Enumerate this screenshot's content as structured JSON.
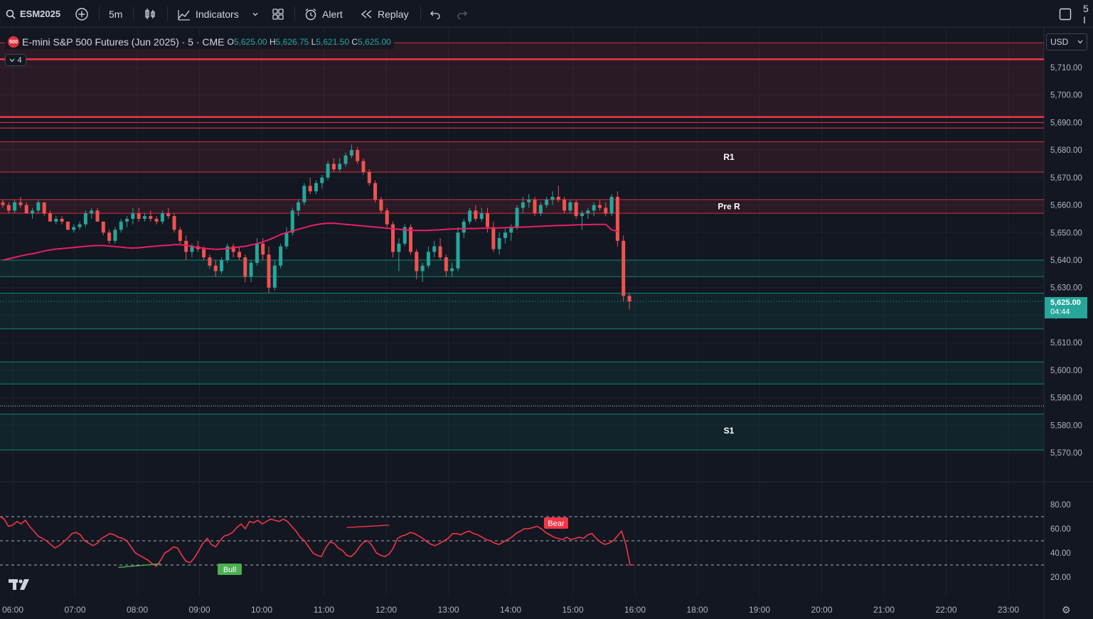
{
  "toolbar": {
    "symbol": "ESM2025",
    "interval": "5m",
    "indicators_label": "Indicators",
    "alert_label": "Alert",
    "replay_label": "Replay",
    "right_text": "5 I"
  },
  "legend": {
    "badge": "500",
    "title": "E-mini S&P 500 Futures (Jun 2025) · 5 · CME",
    "open_label": "O",
    "open": "5,625.00",
    "high_label": "H",
    "high": "5,626.75",
    "low_label": "L",
    "low": "5,621.50",
    "close_label": "C",
    "close": "5,625.00",
    "collapsed_count": "4"
  },
  "currency": "USD",
  "last_price": {
    "price": "5,625.00",
    "countdown": "04:44"
  },
  "chart_data": [
    {
      "type": "candlestick",
      "ylim": [
        5566,
        5725
      ],
      "yticks": [
        "5,710.00",
        "5,700.00",
        "5,690.00",
        "5,680.00",
        "5,670.00",
        "5,660.00",
        "5,650.00",
        "5,640.00",
        "5,630.00",
        "5,620.00",
        "5,610.00",
        "5,600.00",
        "5,590.00",
        "5,580.00",
        "5,570.00"
      ],
      "xticks": [
        "06:00",
        "07:00",
        "08:00",
        "09:00",
        "10:00",
        "11:00",
        "12:00",
        "13:00",
        "14:00",
        "15:00",
        "16:00",
        "18:00",
        "19:00",
        "20:00",
        "21:00",
        "22:00",
        "23:00"
      ],
      "zones": [
        {
          "from": 5692,
          "to": 5719,
          "color": "#f23645",
          "label": ""
        },
        {
          "from": 5672,
          "to": 5683,
          "color": "#f23645",
          "label": "R1"
        },
        {
          "from": 5657,
          "to": 5662,
          "color": "#f23645",
          "label": "Pre R"
        },
        {
          "from": 5640,
          "to": 5634,
          "color": "#089981",
          "label": ""
        },
        {
          "from": 5628,
          "to": 5615,
          "color": "#089981",
          "label": ""
        },
        {
          "from": 5603,
          "to": 5595,
          "color": "#089981",
          "label": ""
        },
        {
          "from": 5584,
          "to": 5571,
          "color": "#089981",
          "label": ""
        }
      ],
      "zone_labels": [
        "R1",
        "Pre R",
        "S1"
      ],
      "s1_level": 5578,
      "hlines_red": [
        5713,
        5692,
        5690,
        5688
      ],
      "dotted_level": 5587,
      "ma_color": "#e91e63",
      "candle_up": "#26a69a",
      "candle_down": "#ef5350",
      "candles": [
        [
          5661,
          5662,
          5659,
          5660
        ],
        [
          5660,
          5661,
          5657,
          5658
        ],
        [
          5658,
          5662,
          5657,
          5661
        ],
        [
          5661,
          5663,
          5659,
          5660
        ],
        [
          5660,
          5661,
          5657,
          5657
        ],
        [
          5657,
          5659,
          5655,
          5658
        ],
        [
          5658,
          5662,
          5657,
          5661
        ],
        [
          5661,
          5661,
          5656,
          5657
        ],
        [
          5657,
          5658,
          5654,
          5654
        ],
        [
          5654,
          5656,
          5653,
          5655
        ],
        [
          5655,
          5656,
          5653,
          5654
        ],
        [
          5654,
          5654,
          5651,
          5651
        ],
        [
          5651,
          5653,
          5650,
          5652
        ],
        [
          5652,
          5654,
          5651,
          5653
        ],
        [
          5653,
          5658,
          5652,
          5657
        ],
        [
          5657,
          5659,
          5655,
          5658
        ],
        [
          5658,
          5659,
          5654,
          5654
        ],
        [
          5654,
          5654,
          5649,
          5650
        ],
        [
          5650,
          5651,
          5646,
          5647
        ],
        [
          5647,
          5652,
          5646,
          5651
        ],
        [
          5651,
          5655,
          5650,
          5654
        ],
        [
          5654,
          5656,
          5652,
          5655
        ],
        [
          5655,
          5659,
          5653,
          5657
        ],
        [
          5657,
          5659,
          5654,
          5655
        ],
        [
          5655,
          5657,
          5654,
          5656
        ],
        [
          5656,
          5658,
          5654,
          5655
        ],
        [
          5655,
          5656,
          5653,
          5654
        ],
        [
          5654,
          5658,
          5653,
          5657
        ],
        [
          5657,
          5659,
          5655,
          5656
        ],
        [
          5656,
          5657,
          5650,
          5651
        ],
        [
          5651,
          5652,
          5646,
          5647
        ],
        [
          5647,
          5649,
          5640,
          5643
        ],
        [
          5643,
          5646,
          5641,
          5645
        ],
        [
          5645,
          5647,
          5643,
          5644
        ],
        [
          5644,
          5645,
          5640,
          5641
        ],
        [
          5641,
          5642,
          5637,
          5638
        ],
        [
          5638,
          5640,
          5634,
          5636
        ],
        [
          5636,
          5641,
          5635,
          5640
        ],
        [
          5640,
          5646,
          5639,
          5645
        ],
        [
          5645,
          5646,
          5641,
          5643
        ],
        [
          5643,
          5645,
          5640,
          5641
        ],
        [
          5641,
          5642,
          5632,
          5634
        ],
        [
          5634,
          5640,
          5632,
          5639
        ],
        [
          5639,
          5648,
          5638,
          5646
        ],
        [
          5646,
          5648,
          5640,
          5642
        ],
        [
          5642,
          5645,
          5628,
          5630
        ],
        [
          5630,
          5640,
          5629,
          5638
        ],
        [
          5638,
          5646,
          5637,
          5645
        ],
        [
          5645,
          5652,
          5644,
          5650
        ],
        [
          5650,
          5659,
          5649,
          5658
        ],
        [
          5658,
          5662,
          5656,
          5661
        ],
        [
          5661,
          5668,
          5660,
          5667
        ],
        [
          5667,
          5670,
          5664,
          5665
        ],
        [
          5665,
          5669,
          5664,
          5668
        ],
        [
          5668,
          5671,
          5666,
          5670
        ],
        [
          5670,
          5676,
          5669,
          5675
        ],
        [
          5675,
          5677,
          5672,
          5673
        ],
        [
          5673,
          5677,
          5672,
          5675
        ],
        [
          5675,
          5679,
          5674,
          5678
        ],
        [
          5678,
          5682,
          5677,
          5680
        ],
        [
          5680,
          5681,
          5675,
          5676
        ],
        [
          5676,
          5677,
          5671,
          5672
        ],
        [
          5672,
          5673,
          5667,
          5668
        ],
        [
          5668,
          5669,
          5661,
          5662
        ],
        [
          5662,
          5663,
          5657,
          5658
        ],
        [
          5658,
          5659,
          5652,
          5653
        ],
        [
          5653,
          5654,
          5641,
          5643
        ],
        [
          5643,
          5648,
          5636,
          5646
        ],
        [
          5646,
          5653,
          5645,
          5652
        ],
        [
          5652,
          5653,
          5642,
          5643
        ],
        [
          5643,
          5644,
          5633,
          5636
        ],
        [
          5636,
          5639,
          5632,
          5638
        ],
        [
          5638,
          5645,
          5637,
          5643
        ],
        [
          5643,
          5647,
          5641,
          5645
        ],
        [
          5645,
          5648,
          5640,
          5641
        ],
        [
          5641,
          5642,
          5634,
          5636
        ],
        [
          5636,
          5639,
          5634,
          5637
        ],
        [
          5637,
          5652,
          5636,
          5650
        ],
        [
          5650,
          5655,
          5648,
          5654
        ],
        [
          5654,
          5659,
          5653,
          5658
        ],
        [
          5658,
          5660,
          5654,
          5655
        ],
        [
          5655,
          5659,
          5654,
          5657
        ],
        [
          5657,
          5659,
          5650,
          5652
        ],
        [
          5652,
          5654,
          5643,
          5644
        ],
        [
          5644,
          5650,
          5642,
          5648
        ],
        [
          5648,
          5652,
          5646,
          5650
        ],
        [
          5650,
          5653,
          5647,
          5652
        ],
        [
          5652,
          5660,
          5651,
          5659
        ],
        [
          5659,
          5663,
          5657,
          5661
        ],
        [
          5661,
          5664,
          5659,
          5662
        ],
        [
          5662,
          5663,
          5656,
          5657
        ],
        [
          5657,
          5661,
          5656,
          5660
        ],
        [
          5660,
          5663,
          5659,
          5662
        ],
        [
          5662,
          5665,
          5660,
          5663
        ],
        [
          5663,
          5667,
          5661,
          5662
        ],
        [
          5662,
          5663,
          5657,
          5658
        ],
        [
          5658,
          5662,
          5657,
          5661
        ],
        [
          5661,
          5662,
          5655,
          5656
        ],
        [
          5656,
          5658,
          5651,
          5657
        ],
        [
          5657,
          5659,
          5655,
          5658
        ],
        [
          5658,
          5661,
          5656,
          5660
        ],
        [
          5660,
          5662,
          5658,
          5659
        ],
        [
          5659,
          5661,
          5656,
          5657
        ],
        [
          5657,
          5664,
          5656,
          5663
        ],
        [
          5663,
          5665,
          5645,
          5647
        ],
        [
          5647,
          5649,
          5625,
          5627
        ],
        [
          5627,
          5628,
          5622,
          5625
        ]
      ],
      "ma": [
        5640,
        5640.5,
        5641,
        5641.5,
        5642,
        5642.3,
        5642.8,
        5643.3,
        5643.7,
        5644,
        5644.2,
        5644.4,
        5644.6,
        5644.8,
        5645,
        5645.2,
        5645.3,
        5645.3,
        5645.1,
        5644.9,
        5644.7,
        5644.5,
        5644.4,
        5644.5,
        5644.7,
        5644.9,
        5645.1,
        5645.3,
        5645.4,
        5645.6,
        5645.6,
        5645.4,
        5645,
        5644.6,
        5644.3,
        5644.1,
        5643.9,
        5644,
        5644.2,
        5644.5,
        5644.8,
        5645,
        5645.5,
        5646,
        5646.6,
        5647.4,
        5648.3,
        5649.3,
        5650,
        5650.6,
        5651.2,
        5651.8,
        5652.4,
        5652.9,
        5653.2,
        5653.4,
        5653.4,
        5653.2,
        5653,
        5652.8,
        5652.6,
        5652.4,
        5652.2,
        5652,
        5651.8,
        5651.6,
        5651.4,
        5651.2,
        5651,
        5650.8,
        5650.8,
        5650.8,
        5650.8,
        5650.9,
        5651,
        5651.2,
        5651.3,
        5651.4,
        5651.4,
        5651.5,
        5651.5,
        5651.6,
        5651.6,
        5651.7,
        5651.7,
        5651.8,
        5651.9,
        5651.9,
        5652,
        5652.1,
        5652.2,
        5652.3,
        5652.4,
        5652.5,
        5652.6,
        5652.6,
        5652.7,
        5652.8,
        5652.9,
        5652.9,
        5653,
        5653,
        5653,
        5651,
        5650.5
      ]
    },
    {
      "type": "line",
      "name": "RSI",
      "ylim": [
        10,
        90
      ],
      "yticks": [
        "80.00",
        "60.00",
        "40.00",
        "20.00"
      ],
      "bands": [
        70,
        50,
        30
      ],
      "signals": [
        {
          "label": "Bull",
          "color": "#4caf50",
          "index": 38
        },
        {
          "label": "Bear",
          "color": "#f23645",
          "index": 92
        }
      ],
      "values": [
        70,
        68,
        62,
        63,
        66,
        64,
        67,
        62,
        58,
        54,
        52,
        50,
        47,
        44,
        46,
        49,
        52,
        56,
        57,
        55,
        50,
        48,
        46,
        48,
        52,
        54,
        56,
        55,
        53,
        52,
        50,
        45,
        40,
        38,
        36,
        34,
        31,
        29,
        34,
        40,
        42,
        45,
        44,
        38,
        33,
        32,
        36,
        42,
        48,
        52,
        47,
        45,
        50,
        54,
        55,
        57,
        61,
        64,
        60,
        66,
        65,
        67,
        64,
        66,
        68,
        67,
        66,
        68,
        66,
        62,
        58,
        53,
        50,
        45,
        40,
        38,
        37,
        44,
        49,
        48,
        44,
        42,
        38,
        37,
        40,
        45,
        49,
        50,
        46,
        40,
        38,
        37,
        39,
        44,
        52,
        54,
        55,
        57,
        56,
        54,
        52,
        49,
        47,
        46,
        48,
        50,
        52,
        56,
        56,
        55,
        57,
        58,
        56,
        55,
        53,
        51,
        50,
        48,
        47,
        49,
        51,
        53,
        56,
        58,
        60,
        60,
        61,
        62,
        60,
        57,
        55,
        53,
        52,
        51,
        53,
        51,
        52,
        53,
        52,
        55,
        56,
        52,
        49,
        47,
        48,
        50,
        54,
        58,
        47,
        30,
        30
      ]
    }
  ]
}
